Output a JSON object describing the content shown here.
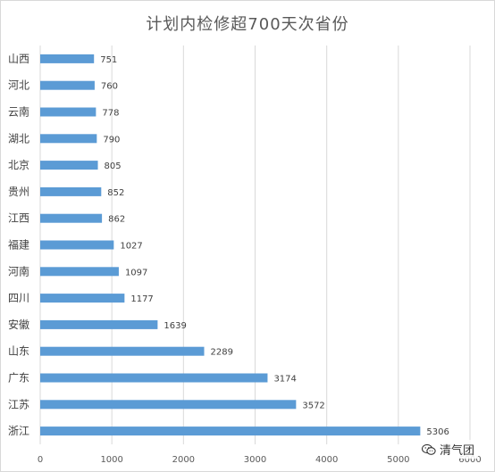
{
  "chart_data": {
    "type": "bar",
    "orientation": "horizontal",
    "title": "计划内检修超700天次省份",
    "categories": [
      "山西",
      "河北",
      "云南",
      "湖北",
      "北京",
      "贵州",
      "江西",
      "福建",
      "河南",
      "四川",
      "安徽",
      "山东",
      "广东",
      "江苏",
      "浙江"
    ],
    "values": [
      751,
      760,
      778,
      790,
      805,
      852,
      862,
      1027,
      1097,
      1177,
      1639,
      2289,
      3174,
      3572,
      5306
    ],
    "xlim": [
      0,
      6000
    ],
    "xticks": [
      "0",
      "1000",
      "2000",
      "3000",
      "4000",
      "5000",
      "6000"
    ],
    "grid": true,
    "bar_color": "#5B9BD5",
    "grid_color": "#d9d9d9"
  },
  "watermark": {
    "icon": "wechat-icon",
    "text": "清气团"
  }
}
